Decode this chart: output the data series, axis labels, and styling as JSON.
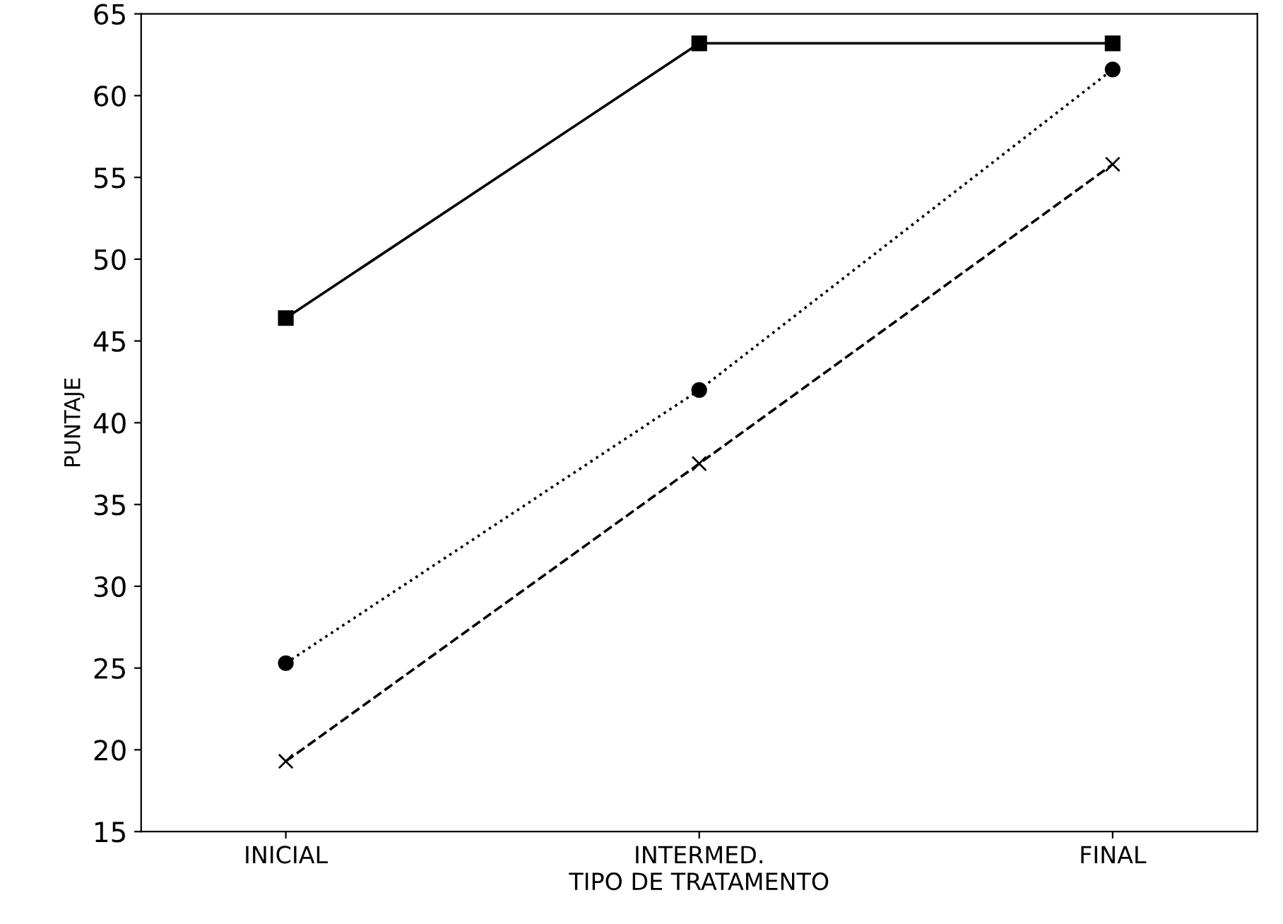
{
  "chart_data": {
    "type": "line",
    "xlabel": "TIPO DE TRATAMENTO",
    "ylabel": "PUNTAJE",
    "categories": [
      "INICIAL",
      "INTERMED.",
      "FINAL"
    ],
    "ylim": [
      15,
      65
    ],
    "yticks": [
      15,
      20,
      25,
      30,
      35,
      40,
      45,
      50,
      55,
      60,
      65
    ],
    "grid": false,
    "series": [
      {
        "color": "#000000",
        "marker": "square",
        "line_style": "solid",
        "values": [
          46.4,
          63.2,
          63.2
        ]
      },
      {
        "color": "#000000",
        "marker": "circle",
        "line_style": "dotted",
        "values": [
          25.3,
          42.0,
          61.6
        ]
      },
      {
        "color": "#000000",
        "marker": "cross",
        "line_style": "dashed",
        "values": [
          19.3,
          37.5,
          55.8
        ]
      }
    ]
  }
}
